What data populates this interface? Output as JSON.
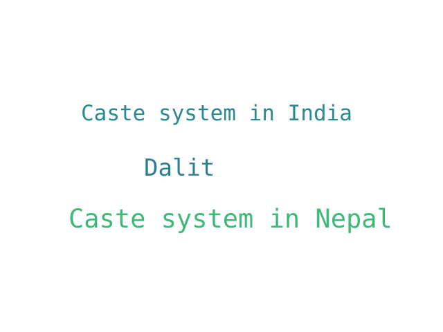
{
  "words": [
    {
      "text": "Caste system in India",
      "color": "#2a8a8f"
    },
    {
      "text": "Dalit",
      "color": "#2b7f94"
    },
    {
      "text": "Caste system in Nepal",
      "color": "#3fb978"
    }
  ]
}
